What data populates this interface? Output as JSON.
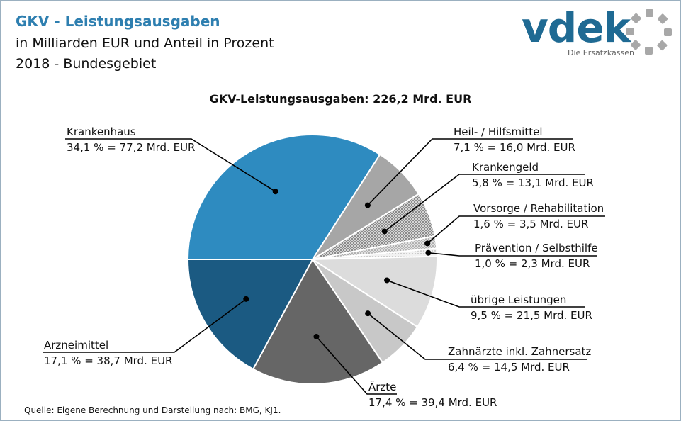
{
  "header": {
    "title": "GKV - Leistungsausgaben",
    "subtitle_1": "in Milliarden EUR und Anteil in Prozent",
    "subtitle_2": "2018 - Bundesgebiet"
  },
  "logo": {
    "word": "vdek",
    "tagline": "Die Ersatzkassen"
  },
  "source": "Quelle: Eigene Berechnung und Darstellung nach: BMG, KJ1.",
  "colors": {
    "title": "#2e7fb0",
    "krankenhaus": "#2e8bc0",
    "arzneimittel": "#1b5a82",
    "aerzte": "#666666",
    "zahnaerzte": "#c8c8c8",
    "uebrige": "#dcdcdc",
    "praevention": "#e6e6e6",
    "vorsorge": "#cfcfcf",
    "krankengeld": "#bdbdbd",
    "heilmittel": "#a6a6a6"
  },
  "chart_data": {
    "type": "pie",
    "title": "GKV-Leistungsausgaben:  226,2  Mrd. EUR",
    "unit": "Mrd. EUR",
    "slices": [
      {
        "name": "Krankenhaus",
        "percent": 34.1,
        "value": 77.2,
        "label_line2": "34,1 % = 77,2 Mrd. EUR",
        "color_key": "krankenhaus"
      },
      {
        "name": "Heil- / Hilfsmittel",
        "percent": 7.1,
        "value": 16.0,
        "label_line2": "7,1 % = 16,0 Mrd. EUR",
        "color_key": "heilmittel"
      },
      {
        "name": "Krankengeld",
        "percent": 5.8,
        "value": 13.1,
        "label_line2": "5,8 % = 13,1 Mrd. EUR",
        "color_key": "krankengeld",
        "pattern": "dots-dense"
      },
      {
        "name": "Vorsorge / Rehabilitation",
        "percent": 1.6,
        "value": 3.5,
        "label_line2": "1,6 % = 3,5 Mrd. EUR",
        "color_key": "vorsorge",
        "pattern": "dots"
      },
      {
        "name": "Prävention / Selbsthilfe",
        "percent": 1.0,
        "value": 2.3,
        "label_line2": "1,0 % = 2,3 Mrd. EUR",
        "color_key": "praevention",
        "pattern": "dots-light"
      },
      {
        "name": "übrige Leistungen",
        "percent": 9.5,
        "value": 21.5,
        "label_line2": "9,5 % = 21,5 Mrd. EUR",
        "color_key": "uebrige"
      },
      {
        "name": "Zahnärzte inkl. Zahnersatz",
        "percent": 6.4,
        "value": 14.5,
        "label_line2": "6,4 % = 14,5 Mrd. EUR",
        "color_key": "zahnaerzte"
      },
      {
        "name": "Ärzte",
        "percent": 17.4,
        "value": 39.4,
        "label_line2": "17,4 % = 39,4 Mrd. EUR",
        "color_key": "aerzte"
      },
      {
        "name": "Arzneimittel",
        "percent": 17.1,
        "value": 38.7,
        "label_line2": "17,1 % = 38,7 Mrd. EUR",
        "color_key": "arzneimittel"
      }
    ]
  }
}
